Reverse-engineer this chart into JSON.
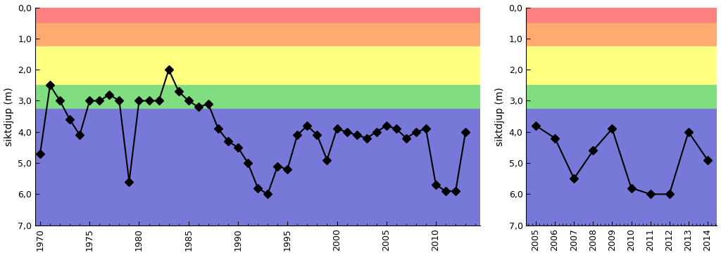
{
  "left": {
    "years": [
      1970,
      1971,
      1972,
      1973,
      1974,
      1975,
      1976,
      1977,
      1978,
      1979,
      1980,
      1981,
      1982,
      1983,
      1984,
      1985,
      1986,
      1987,
      1988,
      1989,
      1990,
      1991,
      1992,
      1993,
      1994,
      1995,
      1996,
      1997,
      1998,
      1999,
      2000,
      2001,
      2002,
      2003,
      2004,
      2005,
      2006,
      2007,
      2008,
      2009,
      2010,
      2011,
      2012,
      2013
    ],
    "values": [
      4.7,
      2.5,
      3.0,
      3.6,
      4.1,
      3.0,
      3.0,
      2.8,
      3.0,
      5.6,
      3.0,
      3.0,
      3.0,
      2.0,
      2.7,
      3.0,
      3.2,
      3.1,
      3.9,
      4.3,
      4.5,
      5.0,
      5.8,
      6.0,
      5.1,
      5.2,
      4.1,
      3.8,
      4.1,
      4.9,
      3.9,
      4.0,
      4.1,
      4.2,
      4.0,
      3.8,
      3.9,
      4.2,
      4.0,
      3.9,
      5.7,
      5.9,
      5.9,
      4.0
    ]
  },
  "right": {
    "years": [
      2005,
      2006,
      2007,
      2008,
      2009,
      2010,
      2011,
      2012,
      2013,
      2014
    ],
    "values": [
      3.8,
      4.2,
      5.5,
      4.6,
      3.9,
      5.8,
      6.0,
      6.0,
      4.0,
      4.9
    ]
  },
  "bands": [
    {
      "ymin": 0.0,
      "ymax": 0.5,
      "color": "#FF8080"
    },
    {
      "ymin": 0.5,
      "ymax": 1.25,
      "color": "#FFAA70"
    },
    {
      "ymin": 1.25,
      "ymax": 2.5,
      "color": "#FFFF80"
    },
    {
      "ymin": 2.5,
      "ymax": 3.25,
      "color": "#80DD80"
    },
    {
      "ymin": 3.25,
      "ymax": 7.0,
      "color": "#7878D8"
    }
  ],
  "ylim": [
    7.0,
    0.0
  ],
  "yticks": [
    0.0,
    1.0,
    2.0,
    3.0,
    4.0,
    5.0,
    6.0,
    7.0
  ],
  "ylabel": "siktdjup (m)",
  "left_xlim": [
    1969.5,
    2014.5
  ],
  "left_xticks": [
    1970,
    1975,
    1980,
    1985,
    1990,
    1995,
    2000,
    2005,
    2010
  ],
  "right_xlim": [
    2004.5,
    2014.5
  ],
  "right_xticks": [
    2005,
    2006,
    2007,
    2008,
    2009,
    2010,
    2011,
    2012,
    2013,
    2014
  ],
  "line_color": "black",
  "marker": "D",
  "markersize": 6,
  "linewidth": 1.5,
  "figsize": [
    10.24,
    3.63
  ],
  "dpi": 100
}
